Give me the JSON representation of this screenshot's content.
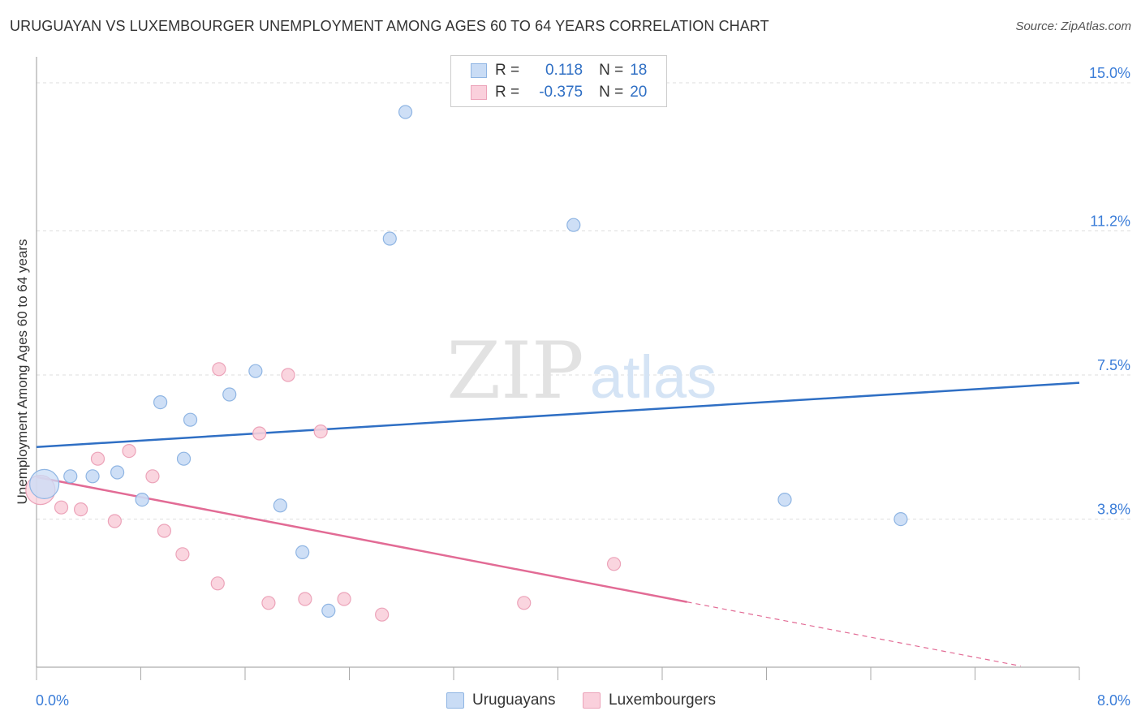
{
  "title": "URUGUAYAN VS LUXEMBOURGER UNEMPLOYMENT AMONG AGES 60 TO 64 YEARS CORRELATION CHART",
  "source": "Source: ZipAtlas.com",
  "watermark": {
    "zip": "ZIP",
    "atlas": "atlas"
  },
  "legend": {
    "rows": [
      {
        "r_label": "R =",
        "r_value": "0.118",
        "n_label": "N =",
        "n_value": "18",
        "color": "#a9c7ee"
      },
      {
        "r_label": "R =",
        "r_value": "-0.375",
        "n_label": "N =",
        "n_value": "20",
        "color": "#f5b5c8"
      }
    ]
  },
  "bottom_legend": {
    "items": [
      {
        "label": "Uruguayans",
        "color": "#a9c7ee"
      },
      {
        "label": "Luxembourgers",
        "color": "#f5b5c8"
      }
    ]
  },
  "colors": {
    "blue_fill": "#c9dcf5",
    "blue_stroke": "#8fb5e3",
    "blue_line": "#2f6fc4",
    "pink_fill": "#fad0dc",
    "pink_stroke": "#eca3b9",
    "pink_line": "#e26b95",
    "tick_text": "#3b7dd8",
    "grid": "#dddddd"
  },
  "chart_data": {
    "type": "scatter",
    "title": "URUGUAYAN VS LUXEMBOURGER UNEMPLOYMENT AMONG AGES 60 TO 64 YEARS CORRELATION CHART",
    "xlabel": "",
    "ylabel": "Unemployment Among Ages 60 to 64 years",
    "xlim": [
      0,
      8
    ],
    "ylim": [
      0,
      15.5
    ],
    "x_tick_labels": [
      "0.0%",
      "8.0%"
    ],
    "y_ticks": [
      3.8,
      7.5,
      11.2,
      15.0
    ],
    "y_tick_labels": [
      "3.8%",
      "7.5%",
      "11.2%",
      "15.0%"
    ],
    "grid": true,
    "legend_position": "top-center",
    "series": [
      {
        "name": "Uruguayans",
        "color": "#a9c7ee",
        "points": [
          [
            0.06,
            4.7,
            "large"
          ],
          [
            0.26,
            4.9
          ],
          [
            0.43,
            4.9
          ],
          [
            0.62,
            5.0
          ],
          [
            0.81,
            4.3
          ],
          [
            0.95,
            6.8
          ],
          [
            1.13,
            5.35
          ],
          [
            1.18,
            6.35
          ],
          [
            1.48,
            7.0
          ],
          [
            1.68,
            7.6
          ],
          [
            1.87,
            4.15
          ],
          [
            2.04,
            2.95
          ],
          [
            2.24,
            1.45
          ],
          [
            2.71,
            11.0
          ],
          [
            2.83,
            14.25
          ],
          [
            4.12,
            11.35
          ],
          [
            5.74,
            4.3
          ],
          [
            6.63,
            3.8
          ]
        ],
        "trend": {
          "x": [
            0,
            8
          ],
          "y": [
            5.65,
            7.3
          ],
          "solid_until": 8
        }
      },
      {
        "name": "Luxembourgers",
        "color": "#f5b5c8",
        "points": [
          [
            0.03,
            4.55,
            "large"
          ],
          [
            0.19,
            4.1
          ],
          [
            0.34,
            4.05
          ],
          [
            0.47,
            5.35
          ],
          [
            0.6,
            3.75
          ],
          [
            0.71,
            5.55
          ],
          [
            0.89,
            4.9
          ],
          [
            0.98,
            3.5
          ],
          [
            1.12,
            2.9
          ],
          [
            1.4,
            7.65
          ],
          [
            1.39,
            2.15
          ],
          [
            1.71,
            6.0
          ],
          [
            1.78,
            1.65
          ],
          [
            1.93,
            7.5
          ],
          [
            2.06,
            1.75
          ],
          [
            2.18,
            6.05
          ],
          [
            2.36,
            1.75
          ],
          [
            2.65,
            1.35
          ],
          [
            3.74,
            1.65
          ],
          [
            4.43,
            2.65
          ]
        ],
        "trend": {
          "x": [
            0,
            7.55
          ],
          "y": [
            4.88,
            0.03
          ],
          "solid_until": 4.99
        }
      }
    ]
  }
}
